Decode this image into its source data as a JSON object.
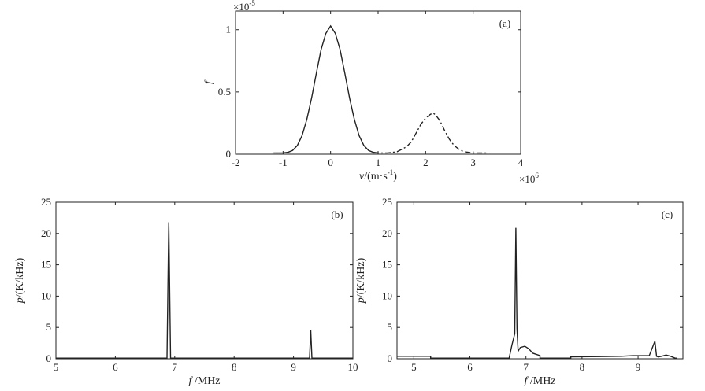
{
  "chart_data": [
    {
      "type": "line",
      "panel_label": "(a)",
      "xlabel_var": "v",
      "xlabel_unit": "/(m·s",
      "xlabel_exp": "-1",
      "xlabel_close": ")",
      "ylabel": "f",
      "x_multiplier_base": "×10",
      "x_multiplier_exp": "6",
      "y_multiplier_base": "×10",
      "y_multiplier_exp": "-5",
      "xlim": [
        -2,
        4
      ],
      "ylim": [
        0,
        1.15
      ],
      "x_ticks": [
        -2,
        -1,
        0,
        1,
        2,
        3,
        4
      ],
      "x_tick_labels": [
        "-2",
        "-1",
        "0",
        "1",
        "2",
        "3",
        "4"
      ],
      "y_ticks": [
        0,
        0.5,
        1
      ],
      "y_tick_labels": [
        "0",
        "0.5",
        "1"
      ],
      "series": [
        {
          "style": "solid",
          "x": [
            -1.2,
            -1.0,
            -0.9,
            -0.8,
            -0.7,
            -0.6,
            -0.5,
            -0.4,
            -0.3,
            -0.2,
            -0.1,
            0.0,
            0.1,
            0.2,
            0.3,
            0.4,
            0.5,
            0.6,
            0.7,
            0.8,
            0.9,
            1.0
          ],
          "y": [
            0.01,
            0.01,
            0.015,
            0.03,
            0.07,
            0.15,
            0.28,
            0.45,
            0.65,
            0.84,
            0.97,
            1.03,
            0.97,
            0.84,
            0.65,
            0.45,
            0.28,
            0.15,
            0.07,
            0.03,
            0.015,
            0.01
          ]
        },
        {
          "style": "dash-dot",
          "x": [
            0.9,
            1.2,
            1.4,
            1.6,
            1.7,
            1.8,
            1.9,
            2.0,
            2.1,
            2.15,
            2.2,
            2.3,
            2.4,
            2.5,
            2.6,
            2.7,
            2.8,
            3.0,
            3.3
          ],
          "y": [
            0.01,
            0.01,
            0.02,
            0.06,
            0.1,
            0.17,
            0.24,
            0.29,
            0.32,
            0.33,
            0.32,
            0.27,
            0.19,
            0.12,
            0.07,
            0.04,
            0.02,
            0.01,
            0.01
          ]
        }
      ]
    },
    {
      "type": "line",
      "panel_label": "(b)",
      "xlabel_var": "f",
      "xlabel_unit": " /MHz",
      "ylabel_var": "p",
      "ylabel_unit": "/(K/kHz)",
      "xlim": [
        5,
        10
      ],
      "ylim": [
        0,
        25
      ],
      "x_ticks": [
        5,
        6,
        7,
        8,
        9,
        10
      ],
      "x_tick_labels": [
        "5",
        "6",
        "7",
        "8",
        "9",
        "10"
      ],
      "y_ticks": [
        0,
        5,
        10,
        15,
        20,
        25
      ],
      "y_tick_labels": [
        "0",
        "5",
        "10",
        "15",
        "20",
        "25"
      ],
      "series": [
        {
          "style": "solid",
          "x": [
            5.0,
            6.87,
            6.9,
            6.93,
            9.27,
            9.29,
            9.31,
            10.0
          ],
          "y": [
            0.1,
            0.1,
            21.8,
            0.1,
            0.1,
            4.6,
            0.1,
            0.1
          ]
        }
      ]
    },
    {
      "type": "line",
      "panel_label": "(c)",
      "xlabel_var": "f",
      "xlabel_unit": " /MHz",
      "ylabel_var": "p",
      "ylabel_unit": "/(K/kHz)",
      "xlim": [
        4.7,
        9.8
      ],
      "ylim": [
        0,
        25
      ],
      "x_ticks": [
        5,
        6,
        7,
        8,
        9
      ],
      "x_tick_labels": [
        "5",
        "6",
        "7",
        "8",
        "9"
      ],
      "y_ticks": [
        0,
        5,
        10,
        15,
        20,
        25
      ],
      "y_tick_labels": [
        "0",
        "5",
        "10",
        "15",
        "20",
        "25"
      ],
      "series": [
        {
          "style": "solid",
          "x": [
            4.7,
            5.3,
            5.3,
            5.9,
            6.7,
            6.75,
            6.8,
            6.82,
            6.84,
            6.86,
            6.9,
            6.98,
            7.05,
            7.12,
            7.25,
            7.25,
            7.8,
            7.8,
            8.7,
            8.9,
            9.2,
            9.3,
            9.33,
            9.36,
            9.42,
            9.5,
            9.58,
            9.66,
            9.7
          ],
          "y": [
            0.4,
            0.4,
            0.1,
            0.1,
            0.1,
            2.2,
            4.0,
            20.9,
            4.8,
            1.2,
            1.8,
            2.0,
            1.6,
            0.9,
            0.5,
            0.1,
            0.1,
            0.3,
            0.4,
            0.5,
            0.5,
            2.8,
            0.4,
            0.3,
            0.4,
            0.6,
            0.4,
            0.1,
            0.1
          ]
        }
      ]
    }
  ]
}
